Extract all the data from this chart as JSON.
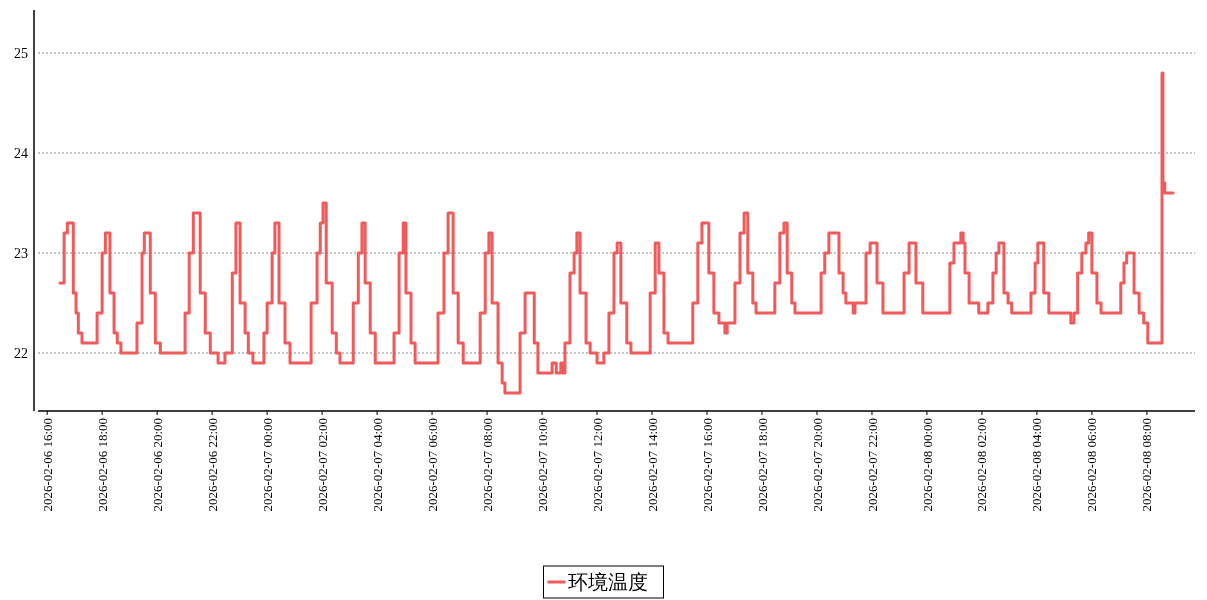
{
  "chart_data": {
    "type": "step",
    "x": [
      "2026-02-06T16:28",
      "2026-02-06T16:37",
      "2026-02-06T16:44",
      "2026-02-06T16:57",
      "2026-02-06T17:03",
      "2026-02-06T17:08",
      "2026-02-06T17:16",
      "2026-02-06T17:49",
      "2026-02-06T18:00",
      "2026-02-06T18:07",
      "2026-02-06T18:17",
      "2026-02-06T18:26",
      "2026-02-06T18:33",
      "2026-02-06T18:41",
      "2026-02-06T19:16",
      "2026-02-06T19:27",
      "2026-02-06T19:32",
      "2026-02-06T19:45",
      "2026-02-06T19:56",
      "2026-02-06T20:07",
      "2026-02-06T21:01",
      "2026-02-06T21:10",
      "2026-02-06T21:19",
      "2026-02-06T21:34",
      "2026-02-06T21:45",
      "2026-02-06T21:56",
      "2026-02-06T22:13",
      "2026-02-06T22:28",
      "2026-02-06T22:44",
      "2026-02-06T22:52",
      "2026-02-06T23:01",
      "2026-02-06T23:12",
      "2026-02-06T23:19",
      "2026-02-06T23:29",
      "2026-02-06T23:53",
      "2026-02-07T00:00",
      "2026-02-07T00:11",
      "2026-02-07T00:17",
      "2026-02-07T00:26",
      "2026-02-07T00:39",
      "2026-02-07T00:50",
      "2026-02-07T01:36",
      "2026-02-07T01:49",
      "2026-02-07T01:56",
      "2026-02-07T02:02",
      "2026-02-07T02:09",
      "2026-02-07T02:22",
      "2026-02-07T02:31",
      "2026-02-07T02:39",
      "2026-02-07T03:08",
      "2026-02-07T03:19",
      "2026-02-07T03:27",
      "2026-02-07T03:34",
      "2026-02-07T03:45",
      "2026-02-07T03:56",
      "2026-02-07T04:37",
      "2026-02-07T04:48",
      "2026-02-07T04:57",
      "2026-02-07T05:03",
      "2026-02-07T05:14",
      "2026-02-07T05:23",
      "2026-02-07T06:13",
      "2026-02-07T06:26",
      "2026-02-07T06:35",
      "2026-02-07T06:46",
      "2026-02-07T06:57",
      "2026-02-07T07:08",
      "2026-02-07T07:45",
      "2026-02-07T07:56",
      "2026-02-07T08:04",
      "2026-02-07T08:11",
      "2026-02-07T08:24",
      "2026-02-07T08:33",
      "2026-02-07T08:39",
      "2026-02-07T09:12",
      "2026-02-07T09:23",
      "2026-02-07T09:43",
      "2026-02-07T09:51",
      "2026-02-07T10:22",
      "2026-02-07T10:31",
      "2026-02-07T10:41",
      "2026-02-07T10:46",
      "2026-02-07T10:50",
      "2026-02-07T11:01",
      "2026-02-07T11:10",
      "2026-02-07T11:16",
      "2026-02-07T11:23",
      "2026-02-07T11:36",
      "2026-02-07T11:45",
      "2026-02-07T12:00",
      "2026-02-07T12:15",
      "2026-02-07T12:26",
      "2026-02-07T12:37",
      "2026-02-07T12:44",
      "2026-02-07T12:52",
      "2026-02-07T13:05",
      "2026-02-07T13:14",
      "2026-02-07T13:56",
      "2026-02-07T14:07",
      "2026-02-07T14:15",
      "2026-02-07T14:26",
      "2026-02-07T14:35",
      "2026-02-07T15:29",
      "2026-02-07T15:40",
      "2026-02-07T15:49",
      "2026-02-07T16:04",
      "2026-02-07T16:15",
      "2026-02-07T16:26",
      "2026-02-07T16:39",
      "2026-02-07T16:44",
      "2026-02-07T17:01",
      "2026-02-07T17:12",
      "2026-02-07T17:21",
      "2026-02-07T17:29",
      "2026-02-07T17:40",
      "2026-02-07T17:47",
      "2026-02-07T18:28",
      "2026-02-07T18:39",
      "2026-02-07T18:48",
      "2026-02-07T18:55",
      "2026-02-07T19:05",
      "2026-02-07T19:12",
      "2026-02-07T20:09",
      "2026-02-07T20:17",
      "2026-02-07T20:26",
      "2026-02-07T20:48",
      "2026-02-07T20:57",
      "2026-02-07T21:03",
      "2026-02-07T21:19",
      "2026-02-07T21:23",
      "2026-02-07T21:47",
      "2026-02-07T21:56",
      "2026-02-07T22:11",
      "2026-02-07T22:24",
      "2026-02-07T23:10",
      "2026-02-07T23:21",
      "2026-02-07T23:36",
      "2026-02-07T23:51",
      "2026-02-08T00:50",
      "2026-02-08T00:59",
      "2026-02-08T01:14",
      "2026-02-08T01:19",
      "2026-02-08T01:23",
      "2026-02-08T01:32",
      "2026-02-08T01:53",
      "2026-02-08T02:13",
      "2026-02-08T02:24",
      "2026-02-08T02:31",
      "2026-02-08T02:37",
      "2026-02-08T02:48",
      "2026-02-08T02:57",
      "2026-02-08T03:05",
      "2026-02-08T03:47",
      "2026-02-08T03:56",
      "2026-02-08T04:02",
      "2026-02-08T04:15",
      "2026-02-08T04:26",
      "2026-02-08T05:14",
      "2026-02-08T05:21",
      "2026-02-08T05:29",
      "2026-02-08T05:38",
      "2026-02-08T05:47",
      "2026-02-08T05:53",
      "2026-02-08T06:00",
      "2026-02-08T06:11",
      "2026-02-08T06:20",
      "2026-02-08T07:03",
      "2026-02-08T07:10",
      "2026-02-08T07:16",
      "2026-02-08T07:32",
      "2026-02-08T07:43",
      "2026-02-08T07:53",
      "2026-02-08T08:02",
      "2026-02-08T08:33",
      "2026-02-08T08:35",
      "2026-02-08T08:39",
      "2026-02-08T08:57"
    ],
    "series": [
      {
        "name": "环境温度",
        "color": "#f05a5a",
        "values": [
          22.7,
          23.2,
          23.3,
          22.6,
          22.4,
          22.2,
          22.1,
          22.4,
          23.0,
          23.2,
          22.6,
          22.2,
          22.1,
          22.0,
          22.3,
          23.0,
          23.2,
          22.6,
          22.1,
          22.0,
          22.4,
          23.0,
          23.4,
          22.6,
          22.2,
          22.0,
          21.9,
          22.0,
          22.8,
          23.3,
          22.5,
          22.2,
          22.0,
          21.9,
          22.2,
          22.5,
          23.0,
          23.3,
          22.5,
          22.1,
          21.9,
          22.5,
          23.0,
          23.3,
          23.5,
          22.7,
          22.2,
          22.0,
          21.9,
          22.5,
          23.0,
          23.3,
          22.7,
          22.2,
          21.9,
          22.2,
          23.0,
          23.3,
          22.6,
          22.1,
          21.9,
          22.4,
          23.0,
          23.4,
          22.6,
          22.1,
          21.9,
          22.4,
          23.0,
          23.2,
          22.5,
          21.9,
          21.7,
          21.6,
          22.2,
          22.6,
          22.1,
          21.8,
          21.9,
          21.8,
          21.9,
          21.8,
          22.1,
          22.8,
          23.0,
          23.2,
          22.6,
          22.1,
          22.0,
          21.9,
          22.0,
          22.4,
          23.0,
          23.1,
          22.5,
          22.1,
          22.0,
          22.6,
          23.1,
          22.8,
          22.2,
          22.1,
          22.5,
          23.1,
          23.3,
          22.8,
          22.4,
          22.3,
          22.2,
          22.3,
          22.7,
          23.2,
          23.4,
          22.8,
          22.5,
          22.4,
          22.7,
          23.2,
          23.3,
          22.8,
          22.5,
          22.4,
          22.8,
          23.0,
          23.2,
          22.8,
          22.6,
          22.5,
          22.4,
          22.5,
          23.0,
          23.1,
          22.7,
          22.4,
          22.8,
          23.1,
          22.7,
          22.4,
          22.9,
          23.1,
          23.2,
          23.1,
          22.8,
          22.5,
          22.4,
          22.5,
          22.8,
          23.0,
          23.1,
          22.6,
          22.5,
          22.4,
          22.6,
          22.9,
          23.1,
          22.6,
          22.4,
          22.3,
          22.4,
          22.8,
          23.0,
          23.1,
          23.2,
          22.8,
          22.5,
          22.4,
          22.7,
          22.9,
          23.0,
          22.6,
          22.4,
          22.3,
          22.1,
          24.8,
          23.7,
          23.6,
          23.6
        ]
      }
    ],
    "xlim": [
      "2026-02-06T15:40",
      "2026-02-08T09:45"
    ],
    "xticks": [
      {
        "value": "2026-02-06T16:00",
        "label": "2026-02-06 16:00"
      },
      {
        "value": "2026-02-06T18:00",
        "label": "2026-02-06 18:00"
      },
      {
        "value": "2026-02-06T20:00",
        "label": "2026-02-06 20:00"
      },
      {
        "value": "2026-02-06T22:00",
        "label": "2026-02-06 22:00"
      },
      {
        "value": "2026-02-07T00:00",
        "label": "2026-02-07 00:00"
      },
      {
        "value": "2026-02-07T02:00",
        "label": "2026-02-07 02:00"
      },
      {
        "value": "2026-02-07T04:00",
        "label": "2026-02-07 04:00"
      },
      {
        "value": "2026-02-07T06:00",
        "label": "2026-02-07 06:00"
      },
      {
        "value": "2026-02-07T08:00",
        "label": "2026-02-07 08:00"
      },
      {
        "value": "2026-02-07T10:00",
        "label": "2026-02-07 10:00"
      },
      {
        "value": "2026-02-07T12:00",
        "label": "2026-02-07 12:00"
      },
      {
        "value": "2026-02-07T14:00",
        "label": "2026-02-07 14:00"
      },
      {
        "value": "2026-02-07T16:00",
        "label": "2026-02-07 16:00"
      },
      {
        "value": "2026-02-07T18:00",
        "label": "2026-02-07 18:00"
      },
      {
        "value": "2026-02-07T20:00",
        "label": "2026-02-07 20:00"
      },
      {
        "value": "2026-02-07T22:00",
        "label": "2026-02-07 22:00"
      },
      {
        "value": "2026-02-08T00:00",
        "label": "2026-02-08 00:00"
      },
      {
        "value": "2026-02-08T02:00",
        "label": "2026-02-08 02:00"
      },
      {
        "value": "2026-02-08T04:00",
        "label": "2026-02-08 04:00"
      },
      {
        "value": "2026-02-08T06:00",
        "label": "2026-02-08 06:00"
      },
      {
        "value": "2026-02-08T08:00",
        "label": "2026-02-08 08:00"
      }
    ],
    "ylim": [
      21.42,
      25.43
    ],
    "yticks": [
      22,
      23,
      24,
      25
    ],
    "grid": "y",
    "legend": "bottom",
    "marker": "none",
    "line_style": "solid"
  }
}
